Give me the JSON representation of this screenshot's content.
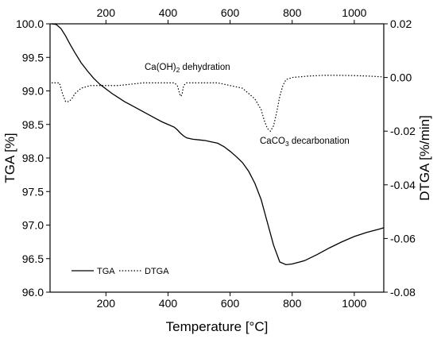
{
  "chart_data": {
    "type": "line",
    "xlabel": "Temperature [°C]",
    "ylabel_left": "TGA [%]",
    "ylabel_right": "DTGA [%/min]",
    "xlim": [
      20,
      1095
    ],
    "ylim_left": [
      96.0,
      100.0
    ],
    "ylim_right": [
      -0.08,
      0.02
    ],
    "x_ticks": [
      200,
      400,
      600,
      800,
      1000
    ],
    "x_tick_labels": [
      "200",
      "400",
      "600",
      "800",
      "1000"
    ],
    "y_left_ticks": [
      96.0,
      96.5,
      97.0,
      97.5,
      98.0,
      98.5,
      99.0,
      99.5,
      100.0
    ],
    "y_left_tick_labels": [
      "96.0",
      "96.5",
      "97.0",
      "97.5",
      "98.0",
      "98.5",
      "99.0",
      "99.5",
      "100.0"
    ],
    "y_right_ticks": [
      -0.08,
      -0.06,
      -0.04,
      -0.02,
      0.0,
      0.02
    ],
    "y_right_tick_labels": [
      "-0.08",
      "-0.06",
      "-0.04",
      "-0.02",
      "0.00",
      "0.02"
    ],
    "series": [
      {
        "name": "TGA",
        "axis": "left",
        "line_style": "solid",
        "x": [
          25,
          40,
          55,
          70,
          85,
          100,
          120,
          140,
          160,
          180,
          200,
          220,
          240,
          260,
          280,
          300,
          320,
          340,
          360,
          380,
          400,
          420,
          430,
          440,
          450,
          460,
          480,
          500,
          520,
          540,
          560,
          580,
          600,
          620,
          640,
          660,
          680,
          700,
          720,
          740,
          760,
          780,
          800,
          840,
          880,
          920,
          960,
          1000,
          1040,
          1080,
          1095
        ],
        "values": [
          100.0,
          99.99,
          99.93,
          99.82,
          99.69,
          99.57,
          99.42,
          99.3,
          99.19,
          99.1,
          99.03,
          98.96,
          98.9,
          98.84,
          98.79,
          98.74,
          98.69,
          98.64,
          98.59,
          98.54,
          98.5,
          98.46,
          98.42,
          98.37,
          98.33,
          98.3,
          98.28,
          98.27,
          98.26,
          98.24,
          98.22,
          98.17,
          98.1,
          98.02,
          97.93,
          97.8,
          97.62,
          97.38,
          97.04,
          96.7,
          96.45,
          96.41,
          96.42,
          96.47,
          96.56,
          96.66,
          96.75,
          96.83,
          96.89,
          96.94,
          96.96
        ]
      },
      {
        "name": "DTGA",
        "axis": "right",
        "line_style": "dotted",
        "x": [
          25,
          40,
          50,
          60,
          70,
          80,
          90,
          100,
          120,
          150,
          180,
          200,
          240,
          280,
          320,
          360,
          400,
          420,
          430,
          440,
          445,
          450,
          460,
          480,
          520,
          560,
          600,
          640,
          660,
          680,
          700,
          710,
          720,
          730,
          740,
          750,
          760,
          770,
          780,
          800,
          850,
          900,
          950,
          1000,
          1050,
          1095
        ],
        "values": [
          -0.002,
          -0.002,
          -0.002,
          -0.006,
          -0.009,
          -0.009,
          -0.008,
          -0.006,
          -0.004,
          -0.003,
          -0.003,
          -0.003,
          -0.003,
          -0.0025,
          -0.002,
          -0.002,
          -0.002,
          -0.002,
          -0.003,
          -0.007,
          -0.0065,
          -0.003,
          -0.002,
          -0.002,
          -0.002,
          -0.002,
          -0.003,
          -0.004,
          -0.006,
          -0.008,
          -0.012,
          -0.016,
          -0.019,
          -0.02,
          -0.018,
          -0.013,
          -0.007,
          -0.003,
          -0.0008,
          0.0,
          0.0005,
          0.0008,
          0.0008,
          0.0007,
          0.0005,
          0.0002
        ]
      }
    ],
    "annotations": [
      {
        "text_main": "Ca(OH)",
        "text_sub": "2",
        "text_rest": " dehydration"
      },
      {
        "text_main": "CaCO",
        "text_sub": "3",
        "text_rest": " decarbonation"
      }
    ],
    "legend": {
      "placement": "bottom-left",
      "entries": [
        "TGA",
        "DTGA"
      ]
    },
    "grid": false
  }
}
